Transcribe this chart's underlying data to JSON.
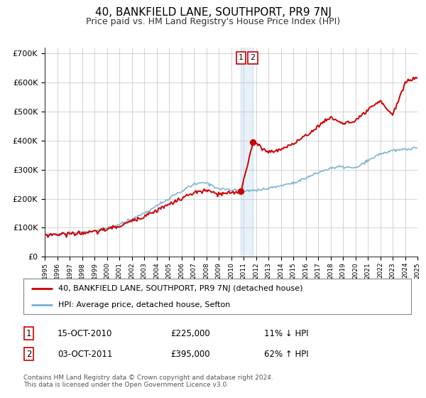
{
  "title": "40, BANKFIELD LANE, SOUTHPORT, PR9 7NJ",
  "subtitle": "Price paid vs. HM Land Registry's House Price Index (HPI)",
  "title_fontsize": 11,
  "subtitle_fontsize": 9,
  "ylim": [
    0,
    720000
  ],
  "yticks": [
    0,
    100000,
    200000,
    300000,
    400000,
    500000,
    600000,
    700000
  ],
  "ytick_labels": [
    "£0",
    "£100K",
    "£200K",
    "£300K",
    "£400K",
    "£500K",
    "£600K",
    "£700K"
  ],
  "sale1_x": 2010.79,
  "sale1_price": 225000,
  "sale2_x": 2011.75,
  "sale2_price": 395000,
  "red_line_color": "#cc0000",
  "blue_line_color": "#7ab0d4",
  "highlight_fill": "#d6e8f5",
  "highlight_alpha": 0.6,
  "annotation_box_color": "#cc0000",
  "legend_label_red": "40, BANKFIELD LANE, SOUTHPORT, PR9 7NJ (detached house)",
  "legend_label_blue": "HPI: Average price, detached house, Sefton",
  "table_row1": [
    "1",
    "15-OCT-2010",
    "£225,000",
    "11% ↓ HPI"
  ],
  "table_row2": [
    "2",
    "03-OCT-2011",
    "£395,000",
    "62% ↑ HPI"
  ],
  "footer_text": "Contains HM Land Registry data © Crown copyright and database right 2024.\nThis data is licensed under the Open Government Licence v3.0.",
  "background_color": "#ffffff",
  "grid_color": "#cccccc",
  "key_t_hpi": [
    1995,
    1997,
    1999,
    2001,
    2003,
    2005,
    2007,
    2008,
    2009,
    2010,
    2011,
    2012,
    2013,
    2014,
    2015,
    2016,
    2017,
    2018,
    2019,
    2020,
    2021,
    2022,
    2023,
    2024,
    2025
  ],
  "key_hpi": [
    75000,
    80000,
    88000,
    110000,
    150000,
    200000,
    250000,
    255000,
    235000,
    230000,
    225000,
    230000,
    235000,
    245000,
    255000,
    270000,
    290000,
    305000,
    310000,
    305000,
    330000,
    355000,
    365000,
    370000,
    375000
  ],
  "key_t_red": [
    1995,
    1997,
    1999,
    2001,
    2003,
    2005,
    2007,
    2008,
    2009,
    2010.5,
    2010.79,
    2011.75,
    2012.5,
    2013,
    2014,
    2015,
    2016,
    2017,
    2018,
    2019,
    2020,
    2021,
    2022,
    2023,
    2023.5,
    2024,
    2025
  ],
  "key_red": [
    75000,
    79000,
    85000,
    105000,
    140000,
    180000,
    220000,
    228000,
    215000,
    222000,
    225000,
    395000,
    375000,
    360000,
    370000,
    390000,
    415000,
    450000,
    480000,
    460000,
    465000,
    505000,
    535000,
    490000,
    540000,
    600000,
    620000
  ]
}
